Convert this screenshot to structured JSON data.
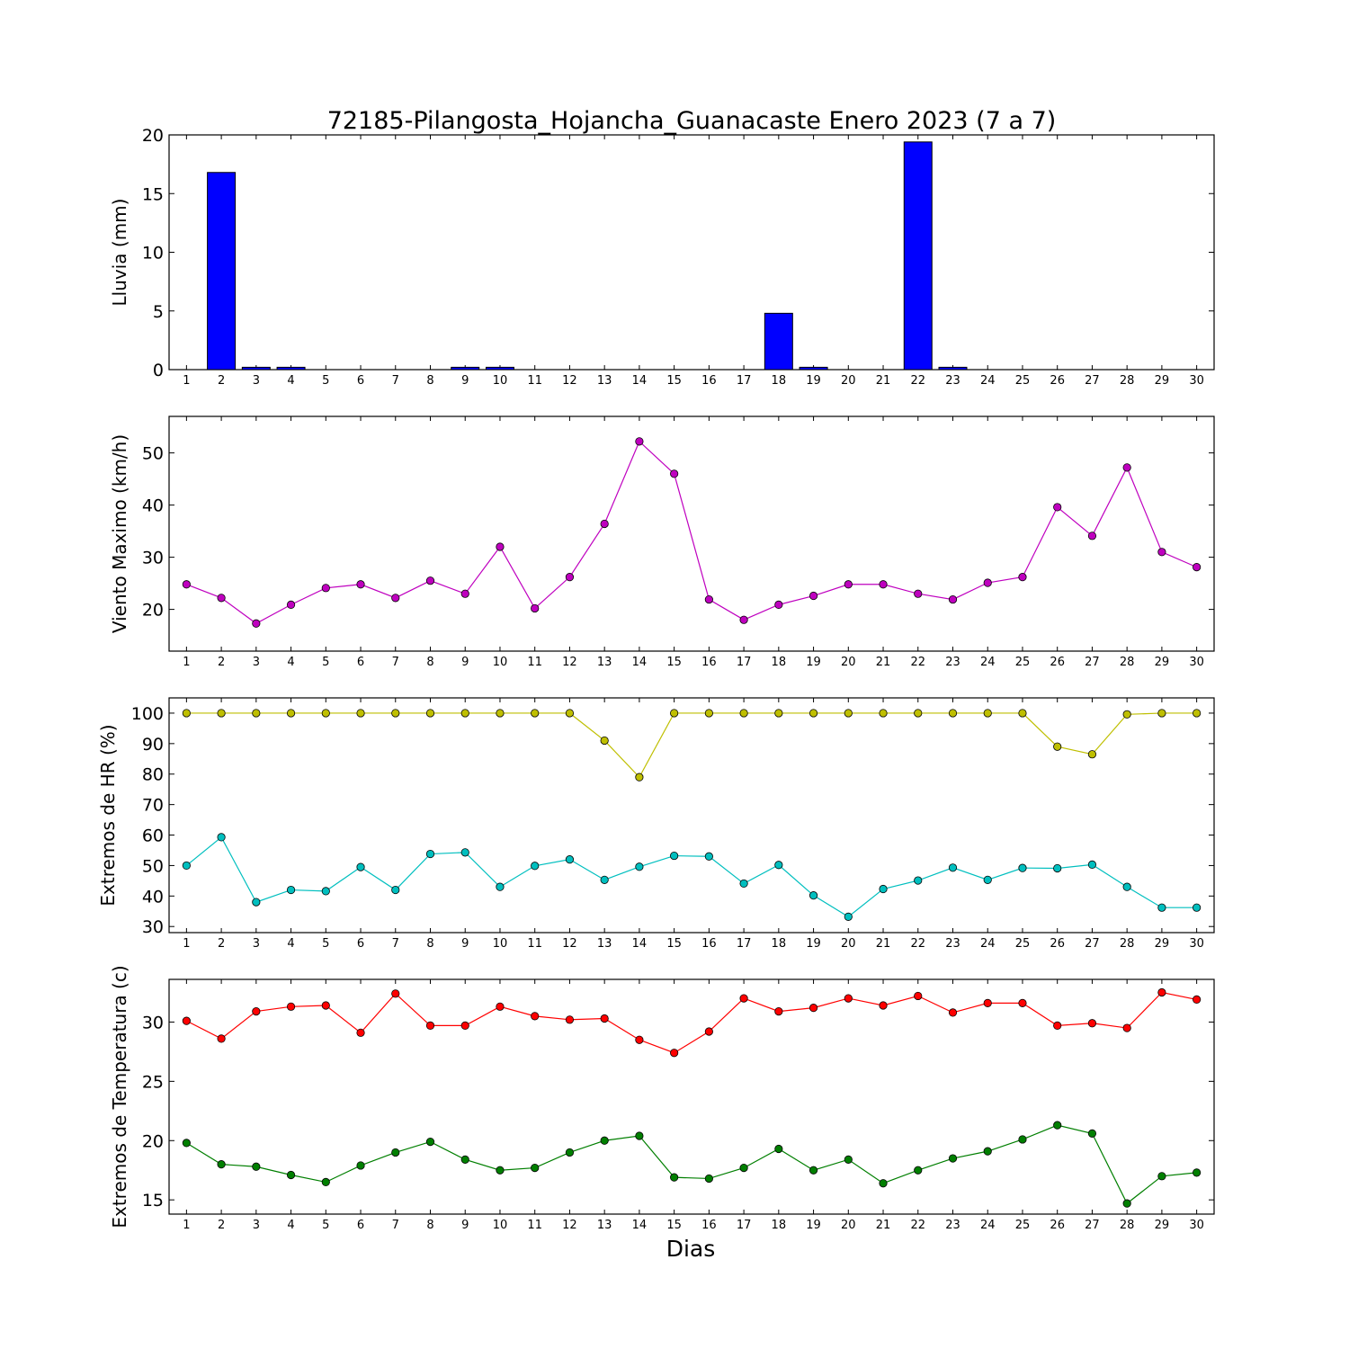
{
  "title": "72185-Pilangosta_Hojancha_Guanacaste Enero 2023  (7 a 7)",
  "xlabel": "Dias",
  "chart_data": [
    {
      "type": "bar",
      "ylabel": "Lluvia (mm)",
      "ylim": [
        0,
        20
      ],
      "yticks": [
        0,
        5,
        10,
        15,
        20
      ],
      "categories": [
        1,
        2,
        3,
        4,
        5,
        6,
        7,
        8,
        9,
        10,
        11,
        12,
        13,
        14,
        15,
        16,
        17,
        18,
        19,
        20,
        21,
        22,
        23,
        24,
        25,
        26,
        27,
        28,
        29,
        30
      ],
      "series": [
        {
          "color": "#0000ff",
          "values": [
            0,
            16.8,
            0.2,
            0.2,
            0,
            0,
            0,
            0,
            0.2,
            0.2,
            0,
            0,
            0,
            0,
            0,
            0,
            0,
            4.8,
            0.2,
            0,
            0,
            19.4,
            0.2,
            0,
            0,
            0,
            0,
            0,
            0,
            0
          ]
        }
      ]
    },
    {
      "type": "line",
      "ylabel": "Viento Maximo (km/h)",
      "ylim": [
        12,
        57
      ],
      "yticks": [
        20,
        30,
        40,
        50
      ],
      "categories": [
        1,
        2,
        3,
        4,
        5,
        6,
        7,
        8,
        9,
        10,
        11,
        12,
        13,
        14,
        15,
        16,
        17,
        18,
        19,
        20,
        21,
        22,
        23,
        24,
        25,
        26,
        27,
        28,
        29,
        30
      ],
      "series": [
        {
          "color": "#bf00bf",
          "values": [
            24.8,
            22.2,
            17.3,
            20.9,
            24.1,
            24.8,
            22.2,
            25.5,
            23.0,
            32.0,
            20.2,
            26.2,
            36.4,
            52.2,
            46.0,
            21.9,
            18.0,
            20.9,
            22.6,
            24.8,
            24.8,
            23.0,
            21.9,
            25.1,
            26.2,
            39.6,
            34.1,
            47.2,
            31.0,
            28.1
          ]
        }
      ]
    },
    {
      "type": "line",
      "ylabel": "Extremos de HR (%)",
      "ylim": [
        28,
        105
      ],
      "yticks": [
        30,
        40,
        50,
        60,
        70,
        80,
        90,
        100
      ],
      "categories": [
        1,
        2,
        3,
        4,
        5,
        6,
        7,
        8,
        9,
        10,
        11,
        12,
        13,
        14,
        15,
        16,
        17,
        18,
        19,
        20,
        21,
        22,
        23,
        24,
        25,
        26,
        27,
        28,
        29,
        30
      ],
      "series": [
        {
          "color": "#bfbf00",
          "values": [
            100,
            100,
            100,
            100,
            100,
            100,
            100,
            100,
            100,
            100,
            100,
            100,
            91,
            79,
            100,
            100,
            100,
            100,
            100,
            100,
            100,
            100,
            100,
            100,
            100,
            89,
            86.5,
            99.6,
            100,
            100
          ]
        },
        {
          "color": "#00bfbf",
          "values": [
            50,
            59.3,
            38,
            42,
            41.6,
            49.5,
            42,
            53.8,
            54.3,
            43,
            49.9,
            52,
            45.3,
            49.6,
            53.2,
            53,
            44.1,
            50.2,
            40.2,
            33.2,
            42.3,
            45.1,
            49.3,
            45.3,
            49.2,
            49.1,
            50.3,
            43,
            36.2,
            36.2
          ]
        }
      ]
    },
    {
      "type": "line",
      "ylabel": "Extremos de Temperatura (c)",
      "ylim": [
        13.8,
        33.6
      ],
      "yticks": [
        15,
        20,
        25,
        30
      ],
      "categories": [
        1,
        2,
        3,
        4,
        5,
        6,
        7,
        8,
        9,
        10,
        11,
        12,
        13,
        14,
        15,
        16,
        17,
        18,
        19,
        20,
        21,
        22,
        23,
        24,
        25,
        26,
        27,
        28,
        29,
        30
      ],
      "series": [
        {
          "color": "#ff0000",
          "values": [
            30.1,
            28.6,
            30.9,
            31.3,
            31.4,
            29.1,
            32.4,
            29.7,
            29.7,
            31.3,
            30.5,
            30.2,
            30.3,
            28.5,
            27.4,
            29.2,
            32.0,
            30.9,
            31.2,
            32.0,
            31.4,
            32.2,
            30.8,
            31.6,
            31.6,
            29.7,
            29.9,
            29.5,
            32.5,
            31.9
          ]
        },
        {
          "color": "#007f00",
          "values": [
            19.8,
            18.0,
            17.8,
            17.1,
            16.5,
            17.9,
            19.0,
            19.9,
            18.4,
            17.5,
            17.7,
            19.0,
            20.0,
            20.4,
            16.9,
            16.8,
            17.7,
            19.3,
            17.5,
            18.4,
            16.4,
            17.5,
            18.5,
            19.1,
            20.1,
            21.3,
            20.6,
            14.7,
            17.0,
            17.3
          ]
        }
      ]
    }
  ]
}
